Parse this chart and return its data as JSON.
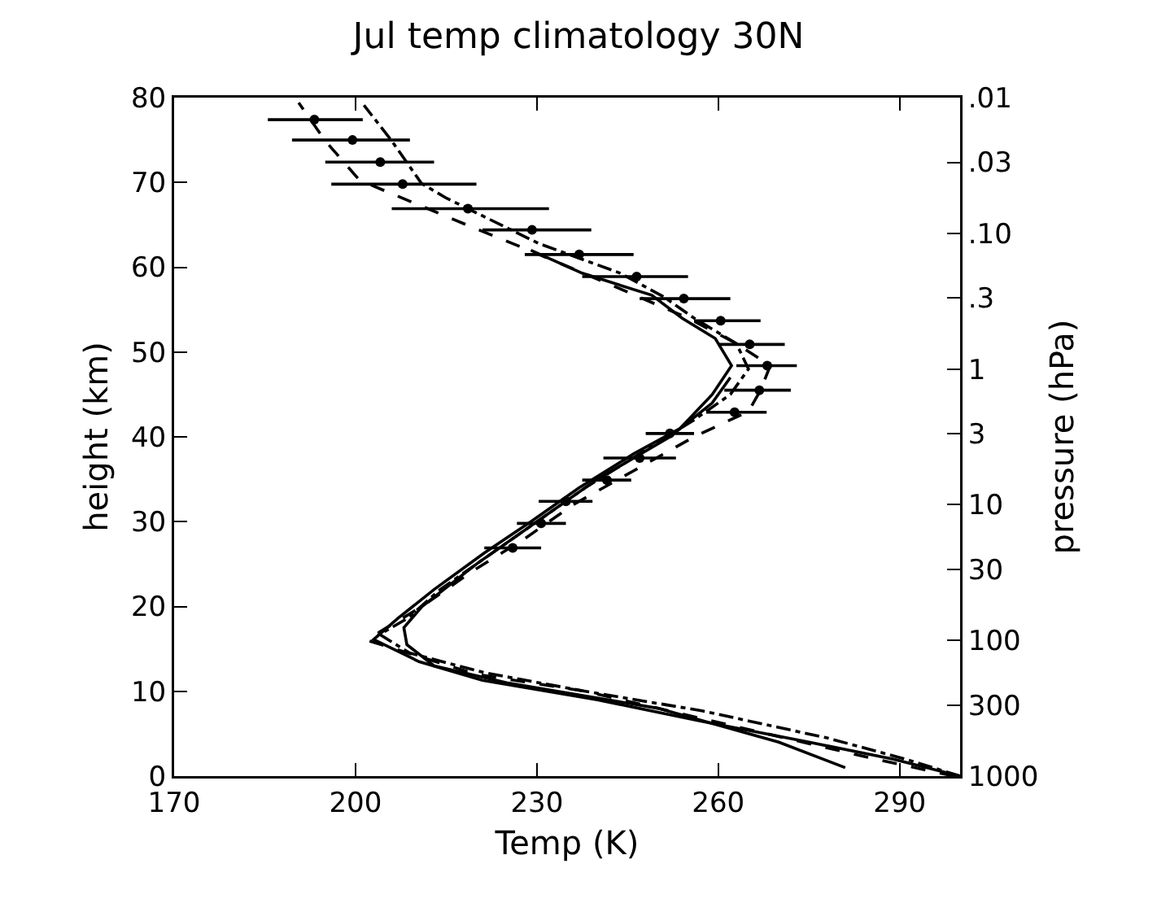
{
  "chart_data": {
    "type": "line",
    "title": "Jul temp climatology 30N",
    "xlabel": "Temp (K)",
    "ylabel": "height (km)",
    "y2label": "pressure (hPa)",
    "xlim": [
      170,
      300
    ],
    "xticks": [
      170,
      200,
      230,
      260,
      290
    ],
    "ylim": [
      0,
      80
    ],
    "yticks": [
      0,
      10,
      20,
      30,
      40,
      50,
      60,
      70,
      80
    ],
    "y2lim": [
      1000,
      0.01
    ],
    "y2ticks": [
      {
        "value": 0.01,
        "label": ".01"
      },
      {
        "value": 0.03,
        "label": ".03"
      },
      {
        "value": 0.1,
        "label": ".10"
      },
      {
        "value": 0.3,
        "label": ".3"
      },
      1,
      3,
      10,
      30,
      100,
      300,
      1000
    ],
    "log": "y2",
    "grid": false,
    "series": [
      {
        "color": "#000000",
        "line_style": "solid",
        "x": [
          300,
          289,
          275,
          257,
          240,
          221,
          210.5,
          203,
          207,
          213,
          221.3,
          229,
          237,
          246,
          253.7,
          259,
          262.2,
          259.5,
          254,
          249,
          237.5,
          229
        ],
        "values": [
          0,
          2,
          4,
          6.5,
          9,
          11.3,
          13.5,
          16.1,
          18.6,
          22,
          26.3,
          30,
          34,
          38,
          41,
          45,
          48.4,
          51.6,
          54,
          56.7,
          59.3,
          62
        ]
      },
      {
        "color": "#000000",
        "line_style": "dashed",
        "x": [
          299,
          286,
          268,
          250,
          238,
          220,
          211,
          202,
          204,
          211,
          219,
          228,
          236,
          246,
          256,
          265,
          267,
          268.6,
          263,
          255,
          242,
          229.4,
          220.4,
          203.2,
          200.5,
          195,
          190.6
        ],
        "values": [
          0,
          2,
          5,
          8,
          10,
          12,
          14,
          16,
          17,
          20,
          24,
          28,
          32,
          36,
          40,
          43,
          45.5,
          48.4,
          51,
          54,
          58,
          61.8,
          64.4,
          69.5,
          70.4,
          74.9,
          79.4
        ]
      },
      {
        "color": "#000000",
        "line_style": "dashdot",
        "x": [
          300,
          291,
          278,
          257.3,
          238,
          221.3,
          209,
          204,
          208.6,
          214,
          222,
          230,
          238,
          247,
          256,
          262,
          265,
          263,
          256,
          251,
          243.8,
          230.3,
          214.9,
          210.9,
          206,
          201.4
        ],
        "values": [
          0,
          2,
          4.5,
          7.7,
          10,
          12.2,
          14.5,
          16.7,
          18.6,
          22,
          26,
          30,
          34,
          38,
          42,
          45,
          48,
          51,
          54,
          56.5,
          59.3,
          62.8,
          68.2,
          69.9,
          74.9,
          79.1
        ]
      },
      {
        "color": "#000000",
        "line_style": "solid",
        "x": [
          281,
          270,
          250,
          225,
          213,
          208.5,
          208,
          211,
          220,
          230,
          240,
          252,
          259,
          262
        ],
        "values": [
          1,
          4,
          8,
          11,
          13,
          15.5,
          17.5,
          20,
          25,
          30,
          35,
          40,
          44,
          47
        ]
      },
      {
        "type": "scatter",
        "color": "#000000",
        "marker": "circle",
        "x": [
          193.2,
          199.5,
          204.1,
          207.8,
          218.6,
          229.2,
          237,
          246.5,
          254.3,
          260.4,
          265.2,
          268.1,
          266.8,
          262.7,
          252,
          247,
          241.6,
          234.8,
          230.7,
          226
        ],
        "values": [
          77.4,
          75,
          72.4,
          69.8,
          66.9,
          64.4,
          61.5,
          58.9,
          56.3,
          53.7,
          50.9,
          48.4,
          45.5,
          42.9,
          40.4,
          37.5,
          34.9,
          32.4,
          29.8,
          26.9
        ],
        "xerrors": [
          [
            185.5,
            201.2
          ],
          [
            189.5,
            209
          ],
          [
            195,
            213
          ],
          [
            196,
            220
          ],
          [
            206,
            232
          ],
          [
            221,
            239
          ],
          [
            228,
            246
          ],
          [
            237.5,
            255
          ],
          [
            247,
            262
          ],
          [
            256,
            267
          ],
          [
            260,
            271
          ],
          [
            263,
            273
          ],
          [
            261,
            272
          ],
          [
            258,
            268
          ],
          [
            248,
            256
          ],
          [
            241,
            253
          ],
          [
            237.5,
            245.6
          ],
          [
            230.3,
            239.2
          ],
          [
            226.7,
            234.8
          ],
          [
            221.3,
            230.7
          ]
        ]
      }
    ]
  }
}
